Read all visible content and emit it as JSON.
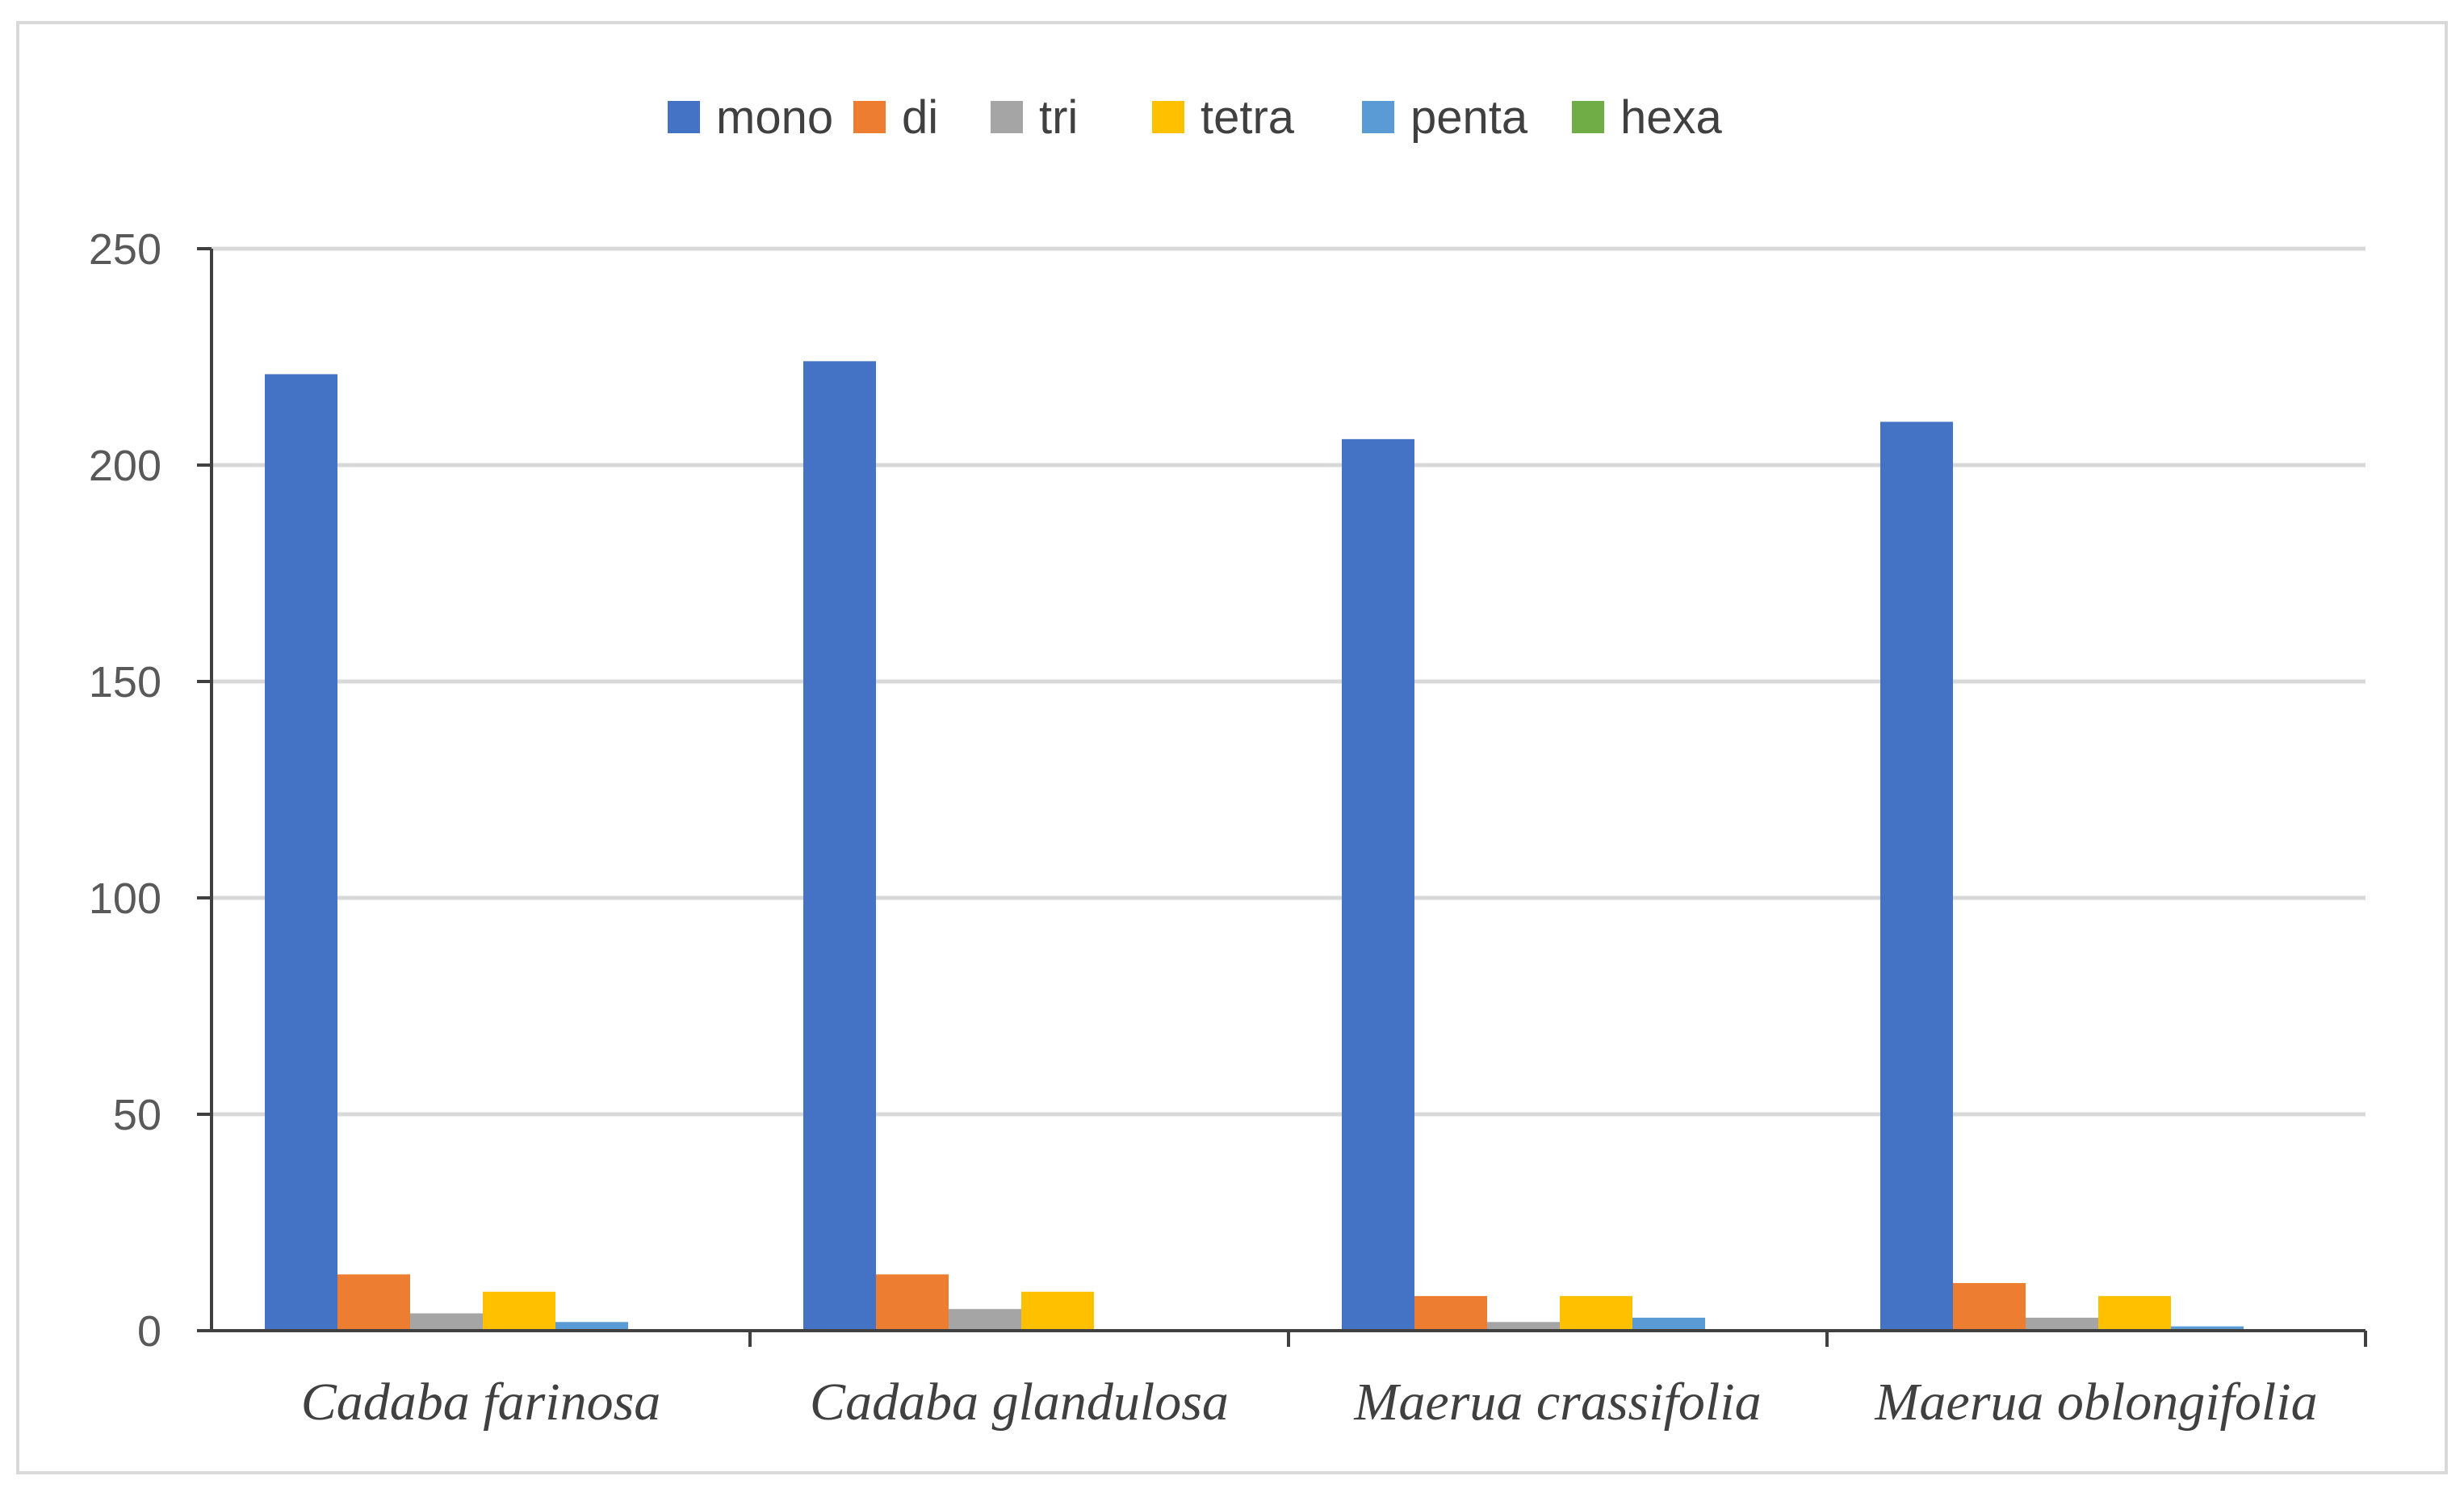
{
  "chart_data": {
    "type": "bar",
    "title": "",
    "xlabel": "",
    "ylabel": "",
    "categories": [
      "Cadaba farinosa",
      "Cadaba glandulosa",
      "Maerua crassifolia",
      "Maerua oblongifolia"
    ],
    "series": [
      {
        "name": "mono",
        "color": "#4472C4",
        "values": [
          221,
          224,
          206,
          210
        ]
      },
      {
        "name": "di",
        "color": "#ED7D31",
        "values": [
          13,
          13,
          8,
          11
        ]
      },
      {
        "name": "tri",
        "color": "#A5A5A5",
        "values": [
          4,
          5,
          2,
          3
        ]
      },
      {
        "name": "tetra",
        "color": "#FFC000",
        "values": [
          9,
          9,
          8,
          8
        ]
      },
      {
        "name": "penta",
        "color": "#5B9BD5",
        "values": [
          2,
          0,
          3,
          1
        ]
      },
      {
        "name": "hexa",
        "color": "#70AD47",
        "values": [
          0,
          0,
          0,
          0
        ]
      }
    ],
    "ylim": [
      0,
      250
    ],
    "yticks": [
      0,
      50,
      100,
      150,
      200,
      250
    ],
    "grid": true,
    "legend_position": "top"
  }
}
